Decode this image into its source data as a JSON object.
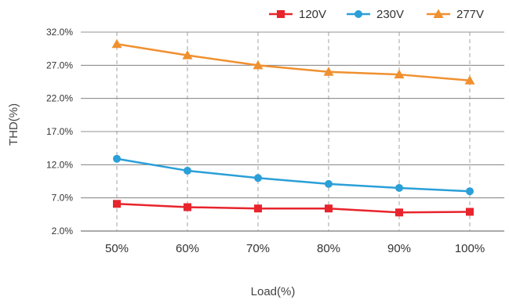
{
  "chart_data": {
    "type": "line",
    "categories": [
      "50%",
      "60%",
      "70%",
      "80%",
      "90%",
      "100%"
    ],
    "series": [
      {
        "name": "120V",
        "values": [
          6.1,
          5.6,
          5.4,
          5.4,
          4.8,
          4.9
        ],
        "color": "#e8242c",
        "marker": "square"
      },
      {
        "name": "230V",
        "values": [
          12.9,
          11.1,
          10.0,
          9.1,
          8.5,
          8.0
        ],
        "color": "#2a9fd8",
        "marker": "circle"
      },
      {
        "name": "277V",
        "values": [
          30.2,
          28.5,
          27.0,
          26.0,
          25.6,
          24.7
        ],
        "color": "#f0902f",
        "marker": "triangle"
      }
    ],
    "yticks": [
      "2.0%",
      "7.0%",
      "12.0%",
      "17.0%",
      "22.0%",
      "27.0%",
      "32.0%"
    ],
    "ylim": [
      2.0,
      32.0
    ],
    "xlabel": "Load(%)",
    "ylabel": "THD(%)",
    "grid": {
      "horizontal": "solid",
      "vertical": "dashed"
    },
    "legend_position": "top-right"
  }
}
